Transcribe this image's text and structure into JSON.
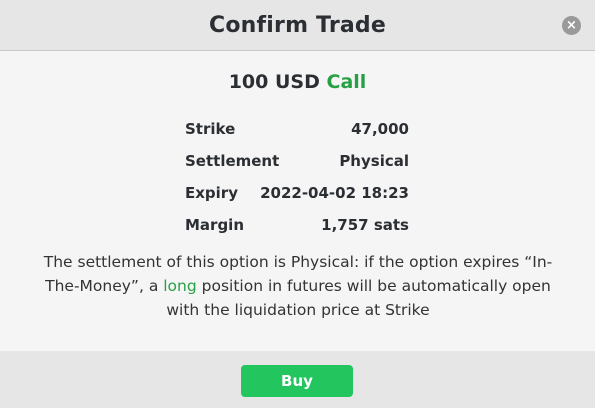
{
  "dialog": {
    "title": "Confirm Trade",
    "close_label": "×"
  },
  "trade": {
    "amount": "100 USD",
    "option_type": "Call"
  },
  "details": [
    {
      "label": "Strike",
      "value": "47,000"
    },
    {
      "label": "Settlement",
      "value": "Physical"
    },
    {
      "label": "Expiry",
      "value": "2022-04-02 18:23"
    },
    {
      "label": "Margin",
      "value": "1,757 sats"
    }
  ],
  "note": {
    "part1": "The settlement of this option is Physical: if the option expires “In-The-Money”, a ",
    "highlight": "long",
    "part2": " position in futures will be automatically open with the liquidation price at Strike"
  },
  "actions": {
    "buy_label": "Buy"
  },
  "colors": {
    "accent_green": "#27a045",
    "button_green": "#22c55e"
  }
}
